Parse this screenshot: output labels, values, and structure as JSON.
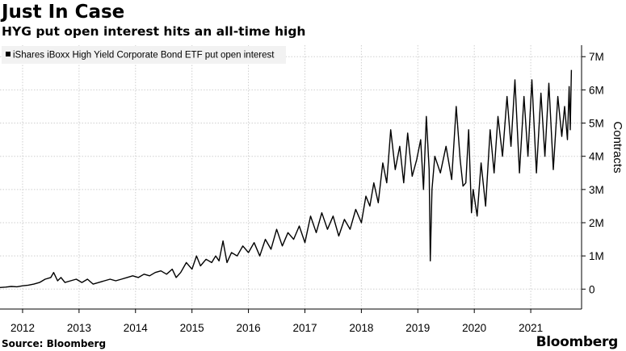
{
  "header": {
    "title": "Just In Case",
    "subtitle": "HYG put open interest hits an all-time high"
  },
  "footer": {
    "source": "Source: Bloomberg",
    "brand": "Bloomberg"
  },
  "chart_data": {
    "type": "line",
    "title": "Just In Case",
    "subtitle": "HYG put open interest hits an all-time high",
    "ylabel": "Contracts",
    "ylim": [
      -0.6,
      7.2
    ],
    "y_ticks": [
      0,
      1,
      2,
      3,
      4,
      5,
      6,
      7
    ],
    "y_tick_labels": [
      "0",
      "1M",
      "2M",
      "3M",
      "4M",
      "5M",
      "6M",
      "7M"
    ],
    "x_ticks": [
      2012,
      2013,
      2014,
      2015,
      2016,
      2017,
      2018,
      2019,
      2020,
      2021
    ],
    "x_tick_labels": [
      "2012",
      "2013",
      "2014",
      "2015",
      "2016",
      "2017",
      "2018",
      "2019",
      "2020",
      "2021"
    ],
    "xlim": [
      2011.6,
      2021.9
    ],
    "grid": true,
    "legend_position": "top-left",
    "y_axis_side": "right",
    "series": [
      {
        "name": "iShares iBoxx High Yield Corporate Bond ETF put open interest",
        "color": "#000000",
        "x": [
          2011.6,
          2011.7,
          2011.8,
          2011.9,
          2012.0,
          2012.1,
          2012.2,
          2012.3,
          2012.4,
          2012.5,
          2012.55,
          2012.62,
          2012.68,
          2012.75,
          2012.85,
          2012.95,
          2013.05,
          2013.15,
          2013.25,
          2013.35,
          2013.45,
          2013.55,
          2013.65,
          2013.75,
          2013.85,
          2013.95,
          2014.05,
          2014.15,
          2014.25,
          2014.35,
          2014.45,
          2014.55,
          2014.65,
          2014.72,
          2014.8,
          2014.9,
          2015.0,
          2015.08,
          2015.15,
          2015.25,
          2015.35,
          2015.42,
          2015.48,
          2015.55,
          2015.62,
          2015.7,
          2015.8,
          2015.9,
          2016.0,
          2016.1,
          2016.2,
          2016.3,
          2016.4,
          2016.5,
          2016.6,
          2016.7,
          2016.8,
          2016.9,
          2017.0,
          2017.1,
          2017.2,
          2017.3,
          2017.4,
          2017.5,
          2017.6,
          2017.7,
          2017.8,
          2017.9,
          2018.0,
          2018.08,
          2018.15,
          2018.22,
          2018.3,
          2018.38,
          2018.45,
          2018.52,
          2018.6,
          2018.68,
          2018.75,
          2018.82,
          2018.9,
          2018.98,
          2019.05,
          2019.1,
          2019.15,
          2019.2,
          2019.22,
          2019.25,
          2019.3,
          2019.4,
          2019.5,
          2019.6,
          2019.68,
          2019.75,
          2019.8,
          2019.85,
          2019.9,
          2019.95,
          2019.98,
          2020.05,
          2020.12,
          2020.2,
          2020.28,
          2020.35,
          2020.42,
          2020.5,
          2020.58,
          2020.65,
          2020.72,
          2020.8,
          2020.88,
          2020.95,
          2021.02,
          2021.1,
          2021.18,
          2021.25,
          2021.32,
          2021.4,
          2021.48,
          2021.55,
          2021.6,
          2021.65,
          2021.68,
          2021.7,
          2021.72
        ],
        "values": [
          0.05,
          0.06,
          0.08,
          0.07,
          0.1,
          0.12,
          0.15,
          0.2,
          0.3,
          0.35,
          0.5,
          0.25,
          0.35,
          0.2,
          0.25,
          0.3,
          0.2,
          0.3,
          0.15,
          0.2,
          0.25,
          0.3,
          0.25,
          0.3,
          0.35,
          0.4,
          0.35,
          0.45,
          0.4,
          0.5,
          0.55,
          0.45,
          0.6,
          0.35,
          0.5,
          0.8,
          0.6,
          1.0,
          0.7,
          0.9,
          0.8,
          1.0,
          0.85,
          1.45,
          0.8,
          1.1,
          1.0,
          1.3,
          1.1,
          1.4,
          1.0,
          1.5,
          1.2,
          1.8,
          1.3,
          1.7,
          1.5,
          1.9,
          1.4,
          2.2,
          1.7,
          2.3,
          1.8,
          2.2,
          1.6,
          2.1,
          1.8,
          2.4,
          2.0,
          2.8,
          2.5,
          3.2,
          2.6,
          3.8,
          3.2,
          4.8,
          3.6,
          4.3,
          3.2,
          4.7,
          3.4,
          3.9,
          4.5,
          3.0,
          5.2,
          3.6,
          0.85,
          3.0,
          4.0,
          3.5,
          4.3,
          3.3,
          5.5,
          3.9,
          3.1,
          3.2,
          4.8,
          2.3,
          3.0,
          2.2,
          3.8,
          2.5,
          4.8,
          3.5,
          5.2,
          4.0,
          5.8,
          4.3,
          6.3,
          3.5,
          5.8,
          4.0,
          6.3,
          3.5,
          5.9,
          4.0,
          6.2,
          3.6,
          5.8,
          4.6,
          5.5,
          4.5,
          6.1,
          4.8,
          6.6
        ]
      }
    ]
  }
}
